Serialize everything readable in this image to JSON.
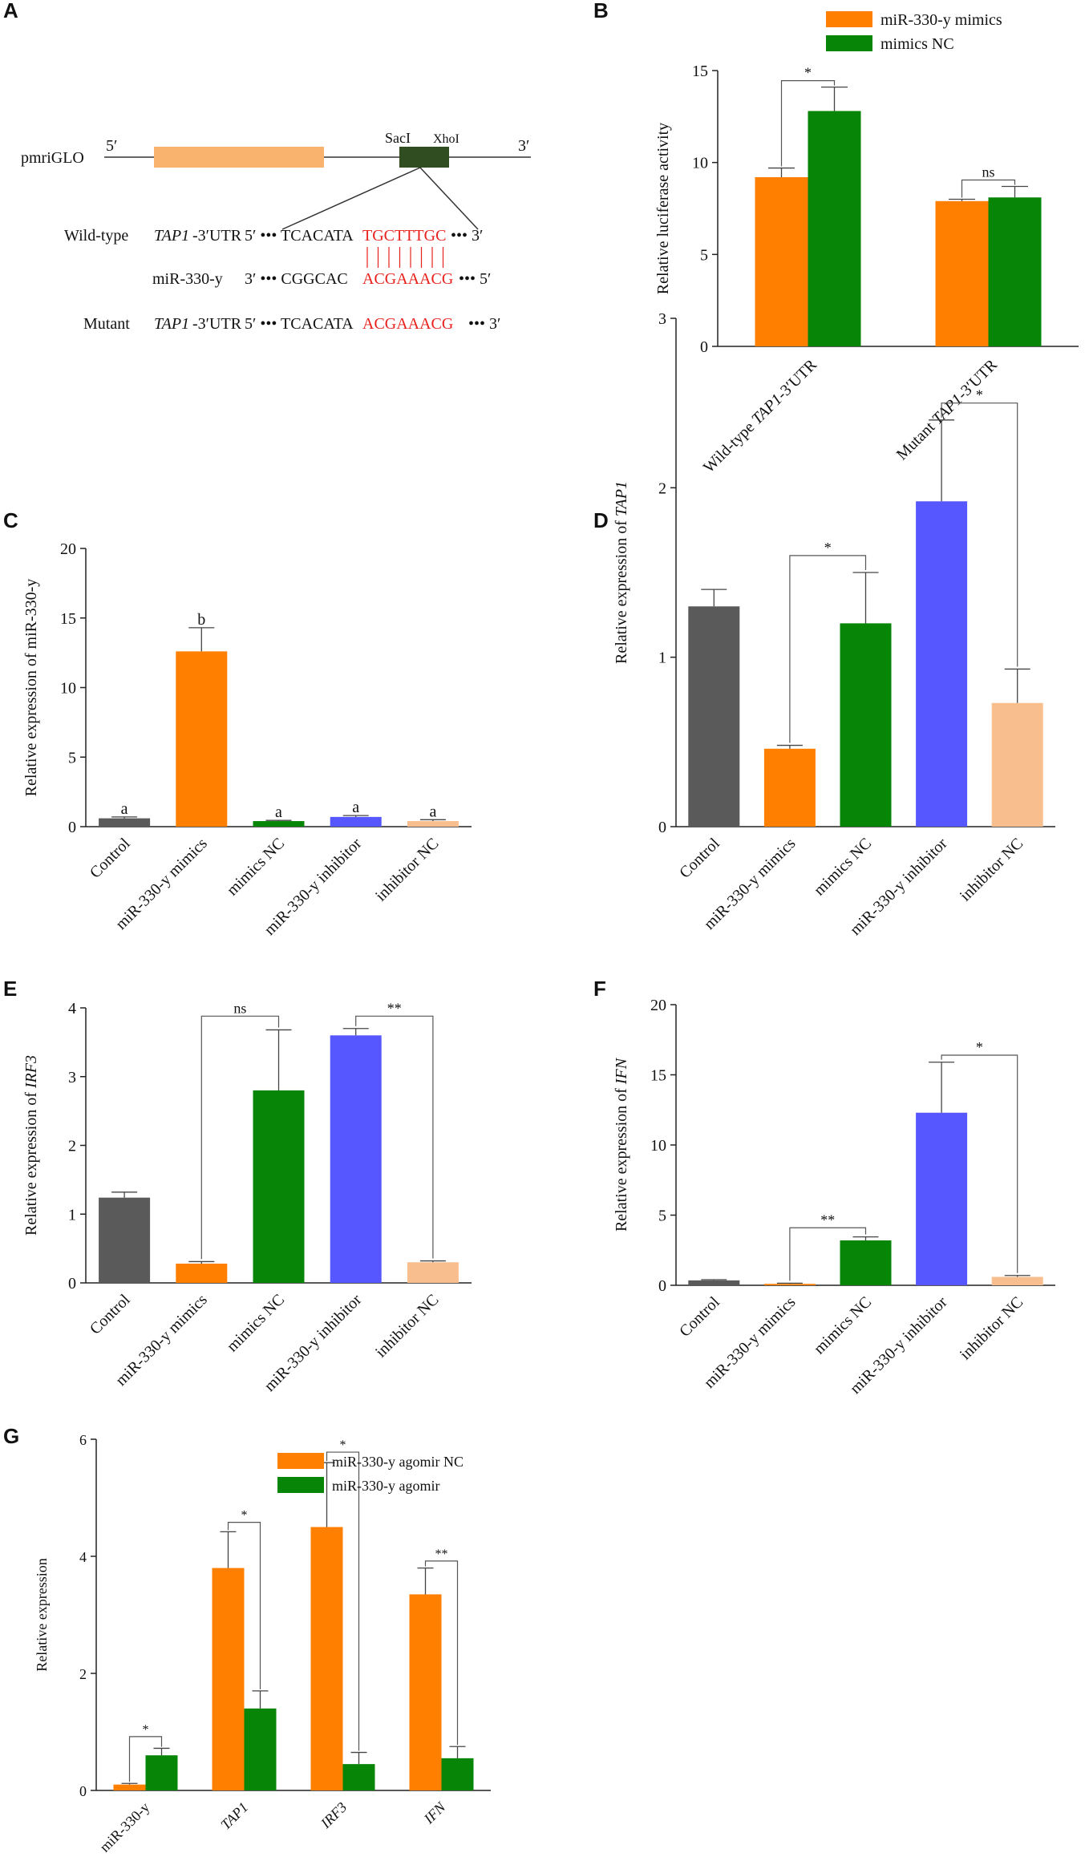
{
  "panels": {
    "A": {
      "label": "A",
      "construct": "pmriGLO",
      "five_prime": "5′",
      "three_prime": "3′",
      "sac": "SacI",
      "xho": "XhoI",
      "wt_label": "Wild-type",
      "wt_gene": "TAP1",
      "wt_suffix": "-3′UTR",
      "wt_prefix": "5′ ••• TCACATA",
      "wt_red": "TGCTTTGC",
      "wt_end": " ••• 3′",
      "mir_label": "miR-330-y",
      "mir_prefix": "3′ ••• CGGCAC",
      "mir_red": "ACGAAACG",
      "mir_end": " ••• 5′",
      "mut_label": "Mutant",
      "mut_gene": "TAP1",
      "mut_suffix": "-3′UTR",
      "mut_prefix": "5′ ••• TCACATA",
      "mut_red": "ACGAAACG",
      "mut_end": " ••• 3′",
      "colors": {
        "orf": "#f9b36e",
        "site": "#304d21",
        "line": "#333333",
        "red": "#e8211c"
      }
    },
    "B": {
      "label": "B"
    },
    "C": {
      "label": "C"
    },
    "D": {
      "label": "D"
    },
    "E": {
      "label": "E"
    },
    "F": {
      "label": "F"
    },
    "G": {
      "label": "G"
    }
  },
  "chart_data": [
    {
      "id": "B",
      "type": "bar",
      "categories": [
        "Wild-type TAP1-3′UTR",
        "Mutant TAP1-3′UTR"
      ],
      "category_parts": [
        [
          "Wild-type ",
          "TAP1",
          "-3′UTR"
        ],
        [
          "Mutant ",
          "TAP1",
          "-3′UTR"
        ]
      ],
      "series": [
        {
          "name": "miR-330-y mimics",
          "color": "#ff7f00",
          "values": [
            9.2,
            7.9
          ],
          "errors": [
            0.5,
            0.1
          ]
        },
        {
          "name": "mimics NC",
          "color": "#068506",
          "values": [
            12.8,
            8.1
          ],
          "errors": [
            1.3,
            0.6
          ]
        }
      ],
      "ylabel": "Relative luciferase activity",
      "ylim": [
        0,
        15
      ],
      "yticks": [
        0,
        5,
        10,
        15
      ],
      "legend": "top",
      "annotations": [
        {
          "text": "*",
          "from": [
            0,
            0
          ],
          "to": [
            0,
            1
          ]
        },
        {
          "text": "ns",
          "from": [
            1,
            0
          ],
          "to": [
            1,
            1
          ]
        }
      ]
    },
    {
      "id": "C",
      "type": "bar",
      "categories": [
        "Control",
        "miR-330-y mimics",
        "mimics NC",
        "miR-330-y inhibitor",
        "inhibitor NC"
      ],
      "colors": [
        "#5a5a5a",
        "#ff7f00",
        "#068506",
        "#5757ff",
        "#f9be8d"
      ],
      "values": [
        0.6,
        12.6,
        0.4,
        0.7,
        0.4
      ],
      "errors": [
        0.1,
        1.7,
        0.05,
        0.1,
        0.1
      ],
      "letters": [
        "a",
        "b",
        "a",
        "a",
        "a"
      ],
      "ylabel": "Relative expression of miR-330-y",
      "ylabel_parts": [
        "Relative expression of miR-330-y"
      ],
      "ylim": [
        0,
        20
      ],
      "yticks": [
        0,
        5,
        10,
        15,
        20
      ],
      "annotations": []
    },
    {
      "id": "D",
      "type": "bar",
      "categories": [
        "Control",
        "miR-330-y mimics",
        "mimics NC",
        "miR-330-y inhibitor",
        "inhibitor NC"
      ],
      "colors": [
        "#5a5a5a",
        "#ff7f00",
        "#068506",
        "#5757ff",
        "#f9be8d"
      ],
      "values": [
        1.3,
        0.46,
        1.2,
        1.92,
        0.73
      ],
      "errors": [
        0.1,
        0.02,
        0.3,
        0.48,
        0.2
      ],
      "ylabel": "Relative expression of TAP1",
      "ylabel_parts": [
        "Relative expression of ",
        "TAP1"
      ],
      "ylim": [
        0,
        3
      ],
      "yticks": [
        0,
        1,
        2,
        3
      ],
      "annotations": [
        {
          "text": "*",
          "from": 1,
          "to": 2,
          "level": 1.6
        },
        {
          "text": "*",
          "from": 3,
          "to": 4,
          "level": 2.5
        }
      ]
    },
    {
      "id": "E",
      "type": "bar",
      "categories": [
        "Control",
        "miR-330-y mimics",
        "mimics NC",
        "miR-330-y inhibitor",
        "inhibitor NC"
      ],
      "colors": [
        "#5a5a5a",
        "#ff7f00",
        "#068506",
        "#5757ff",
        "#f9be8d"
      ],
      "values": [
        1.24,
        0.28,
        2.8,
        3.6,
        0.3
      ],
      "errors": [
        0.08,
        0.03,
        0.88,
        0.1,
        0.02
      ],
      "ylabel": "Relative expression of IRF3",
      "ylabel_parts": [
        "Relative expression of ",
        "IRF3"
      ],
      "ylim": [
        0,
        4
      ],
      "yticks": [
        0,
        1,
        2,
        3,
        4
      ],
      "annotations": [
        {
          "text": "ns",
          "from": 1,
          "to": 2,
          "level": 3.88
        },
        {
          "text": "**",
          "from": 3,
          "to": 4,
          "level": 3.88
        }
      ]
    },
    {
      "id": "F",
      "type": "bar",
      "categories": [
        "Control",
        "miR-330-y mimics",
        "mimics NC",
        "miR-330-y inhibitor",
        "inhibitor NC"
      ],
      "colors": [
        "#5a5a5a",
        "#ff7f00",
        "#068506",
        "#5757ff",
        "#f9be8d"
      ],
      "values": [
        0.35,
        0.1,
        3.2,
        12.3,
        0.6
      ],
      "errors": [
        0.05,
        0.05,
        0.25,
        3.6,
        0.1
      ],
      "ylabel": "Relative expression of IFN",
      "ylabel_parts": [
        "Relative expression of ",
        "IFN"
      ],
      "ylim": [
        0,
        20
      ],
      "yticks": [
        0,
        5,
        10,
        15,
        20
      ],
      "annotations": [
        {
          "text": "**",
          "from": 1,
          "to": 2,
          "level": 4.1
        },
        {
          "text": "*",
          "from": 3,
          "to": 4,
          "level": 16.4
        }
      ]
    },
    {
      "id": "G",
      "type": "bar",
      "categories": [
        "miR-330-y",
        "TAP1",
        "IRF3",
        "IFN"
      ],
      "category_italic": [
        false,
        true,
        true,
        true
      ],
      "series": [
        {
          "name": "miR-330-y agomir NC",
          "color": "#ff7f00",
          "values": [
            0.1,
            3.8,
            4.5,
            3.35
          ],
          "errors": [
            0.02,
            0.62,
            1.1,
            0.45
          ]
        },
        {
          "name": "miR-330-y agomir",
          "color": "#068506",
          "values": [
            0.6,
            1.4,
            0.45,
            0.55
          ],
          "errors": [
            0.12,
            0.3,
            0.2,
            0.2
          ]
        }
      ],
      "ylabel": "Relative expression",
      "ylim": [
        0,
        6
      ],
      "yticks": [
        0,
        2,
        4,
        6
      ],
      "legend": "top",
      "annotations": [
        {
          "text": "*",
          "group": 0,
          "level": 0.92
        },
        {
          "text": "*",
          "group": 1,
          "level": 4.58
        },
        {
          "text": "*",
          "group": 2,
          "level": 5.78
        },
        {
          "text": "**",
          "group": 3,
          "level": 3.92
        }
      ]
    }
  ]
}
